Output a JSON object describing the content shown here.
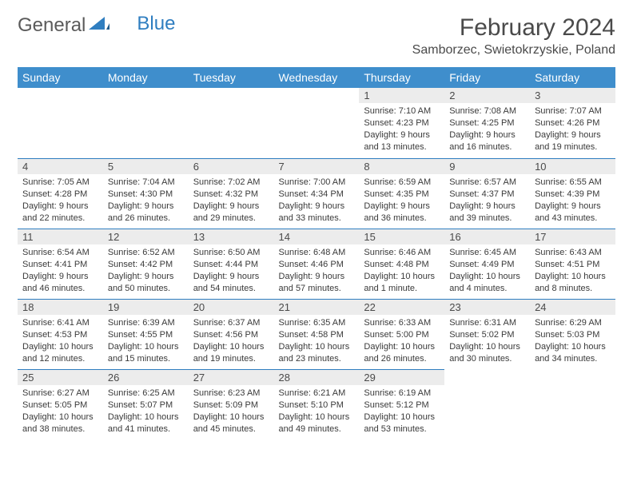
{
  "logo": {
    "text1": "General",
    "text2": "Blue"
  },
  "title": "February 2024",
  "location": "Samborzec, Swietokrzyskie, Poland",
  "colors": {
    "header_bg": "#3f8ecc",
    "header_text": "#ffffff",
    "daynum_bg": "#ececec",
    "rule": "#2f7ec0",
    "body_text": "#3a3a3a",
    "title_text": "#4a4a4a"
  },
  "fonts": {
    "title_size_pt": 22,
    "location_size_pt": 12,
    "header_size_pt": 11,
    "daynum_size_pt": 10,
    "cell_size_pt": 8
  },
  "weekdays": [
    "Sunday",
    "Monday",
    "Tuesday",
    "Wednesday",
    "Thursday",
    "Friday",
    "Saturday"
  ],
  "weeks": [
    [
      null,
      null,
      null,
      null,
      {
        "n": "1",
        "sr": "Sunrise: 7:10 AM",
        "ss": "Sunset: 4:23 PM",
        "d1": "Daylight: 9 hours",
        "d2": "and 13 minutes."
      },
      {
        "n": "2",
        "sr": "Sunrise: 7:08 AM",
        "ss": "Sunset: 4:25 PM",
        "d1": "Daylight: 9 hours",
        "d2": "and 16 minutes."
      },
      {
        "n": "3",
        "sr": "Sunrise: 7:07 AM",
        "ss": "Sunset: 4:26 PM",
        "d1": "Daylight: 9 hours",
        "d2": "and 19 minutes."
      }
    ],
    [
      {
        "n": "4",
        "sr": "Sunrise: 7:05 AM",
        "ss": "Sunset: 4:28 PM",
        "d1": "Daylight: 9 hours",
        "d2": "and 22 minutes."
      },
      {
        "n": "5",
        "sr": "Sunrise: 7:04 AM",
        "ss": "Sunset: 4:30 PM",
        "d1": "Daylight: 9 hours",
        "d2": "and 26 minutes."
      },
      {
        "n": "6",
        "sr": "Sunrise: 7:02 AM",
        "ss": "Sunset: 4:32 PM",
        "d1": "Daylight: 9 hours",
        "d2": "and 29 minutes."
      },
      {
        "n": "7",
        "sr": "Sunrise: 7:00 AM",
        "ss": "Sunset: 4:34 PM",
        "d1": "Daylight: 9 hours",
        "d2": "and 33 minutes."
      },
      {
        "n": "8",
        "sr": "Sunrise: 6:59 AM",
        "ss": "Sunset: 4:35 PM",
        "d1": "Daylight: 9 hours",
        "d2": "and 36 minutes."
      },
      {
        "n": "9",
        "sr": "Sunrise: 6:57 AM",
        "ss": "Sunset: 4:37 PM",
        "d1": "Daylight: 9 hours",
        "d2": "and 39 minutes."
      },
      {
        "n": "10",
        "sr": "Sunrise: 6:55 AM",
        "ss": "Sunset: 4:39 PM",
        "d1": "Daylight: 9 hours",
        "d2": "and 43 minutes."
      }
    ],
    [
      {
        "n": "11",
        "sr": "Sunrise: 6:54 AM",
        "ss": "Sunset: 4:41 PM",
        "d1": "Daylight: 9 hours",
        "d2": "and 46 minutes."
      },
      {
        "n": "12",
        "sr": "Sunrise: 6:52 AM",
        "ss": "Sunset: 4:42 PM",
        "d1": "Daylight: 9 hours",
        "d2": "and 50 minutes."
      },
      {
        "n": "13",
        "sr": "Sunrise: 6:50 AM",
        "ss": "Sunset: 4:44 PM",
        "d1": "Daylight: 9 hours",
        "d2": "and 54 minutes."
      },
      {
        "n": "14",
        "sr": "Sunrise: 6:48 AM",
        "ss": "Sunset: 4:46 PM",
        "d1": "Daylight: 9 hours",
        "d2": "and 57 minutes."
      },
      {
        "n": "15",
        "sr": "Sunrise: 6:46 AM",
        "ss": "Sunset: 4:48 PM",
        "d1": "Daylight: 10 hours",
        "d2": "and 1 minute."
      },
      {
        "n": "16",
        "sr": "Sunrise: 6:45 AM",
        "ss": "Sunset: 4:49 PM",
        "d1": "Daylight: 10 hours",
        "d2": "and 4 minutes."
      },
      {
        "n": "17",
        "sr": "Sunrise: 6:43 AM",
        "ss": "Sunset: 4:51 PM",
        "d1": "Daylight: 10 hours",
        "d2": "and 8 minutes."
      }
    ],
    [
      {
        "n": "18",
        "sr": "Sunrise: 6:41 AM",
        "ss": "Sunset: 4:53 PM",
        "d1": "Daylight: 10 hours",
        "d2": "and 12 minutes."
      },
      {
        "n": "19",
        "sr": "Sunrise: 6:39 AM",
        "ss": "Sunset: 4:55 PM",
        "d1": "Daylight: 10 hours",
        "d2": "and 15 minutes."
      },
      {
        "n": "20",
        "sr": "Sunrise: 6:37 AM",
        "ss": "Sunset: 4:56 PM",
        "d1": "Daylight: 10 hours",
        "d2": "and 19 minutes."
      },
      {
        "n": "21",
        "sr": "Sunrise: 6:35 AM",
        "ss": "Sunset: 4:58 PM",
        "d1": "Daylight: 10 hours",
        "d2": "and 23 minutes."
      },
      {
        "n": "22",
        "sr": "Sunrise: 6:33 AM",
        "ss": "Sunset: 5:00 PM",
        "d1": "Daylight: 10 hours",
        "d2": "and 26 minutes."
      },
      {
        "n": "23",
        "sr": "Sunrise: 6:31 AM",
        "ss": "Sunset: 5:02 PM",
        "d1": "Daylight: 10 hours",
        "d2": "and 30 minutes."
      },
      {
        "n": "24",
        "sr": "Sunrise: 6:29 AM",
        "ss": "Sunset: 5:03 PM",
        "d1": "Daylight: 10 hours",
        "d2": "and 34 minutes."
      }
    ],
    [
      {
        "n": "25",
        "sr": "Sunrise: 6:27 AM",
        "ss": "Sunset: 5:05 PM",
        "d1": "Daylight: 10 hours",
        "d2": "and 38 minutes."
      },
      {
        "n": "26",
        "sr": "Sunrise: 6:25 AM",
        "ss": "Sunset: 5:07 PM",
        "d1": "Daylight: 10 hours",
        "d2": "and 41 minutes."
      },
      {
        "n": "27",
        "sr": "Sunrise: 6:23 AM",
        "ss": "Sunset: 5:09 PM",
        "d1": "Daylight: 10 hours",
        "d2": "and 45 minutes."
      },
      {
        "n": "28",
        "sr": "Sunrise: 6:21 AM",
        "ss": "Sunset: 5:10 PM",
        "d1": "Daylight: 10 hours",
        "d2": "and 49 minutes."
      },
      {
        "n": "29",
        "sr": "Sunrise: 6:19 AM",
        "ss": "Sunset: 5:12 PM",
        "d1": "Daylight: 10 hours",
        "d2": "and 53 minutes."
      },
      null,
      null
    ]
  ]
}
